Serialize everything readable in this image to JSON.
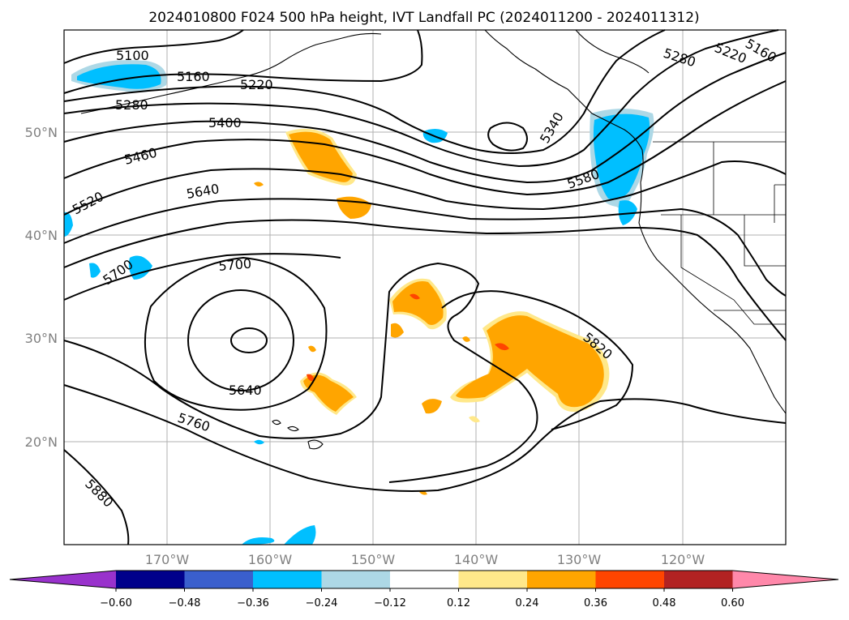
{
  "title": "2024010800 F024 500 hPa height, IVT Landfall PC (2024011200 - 2024011312)",
  "lat_labels": [
    "50°N",
    "40°N",
    "30°N",
    "20°N"
  ],
  "lon_labels": [
    "170°W",
    "160°W",
    "150°W",
    "140°W",
    "130°W",
    "120°W"
  ],
  "contour_labels": [
    "5100",
    "5160",
    "5220",
    "5280",
    "5400",
    "5460",
    "5520",
    "5640",
    "5700",
    "5700",
    "5640",
    "5760",
    "5880",
    "5340",
    "5580",
    "5820",
    "5280",
    "5220",
    "5160"
  ],
  "colorbar": {
    "ticks": [
      "−0.60",
      "−0.48",
      "−0.36",
      "−0.24",
      "−0.12",
      "0.12",
      "0.24",
      "0.36",
      "0.48",
      "0.60"
    ],
    "colors": [
      "#9932cc",
      "#00008b",
      "#3a5fcd",
      "#00bfff",
      "#add8e6",
      "#ffffff",
      "#ffe88a",
      "#ffa500",
      "#ff4500",
      "#b22222",
      "#ff88aa"
    ]
  }
}
